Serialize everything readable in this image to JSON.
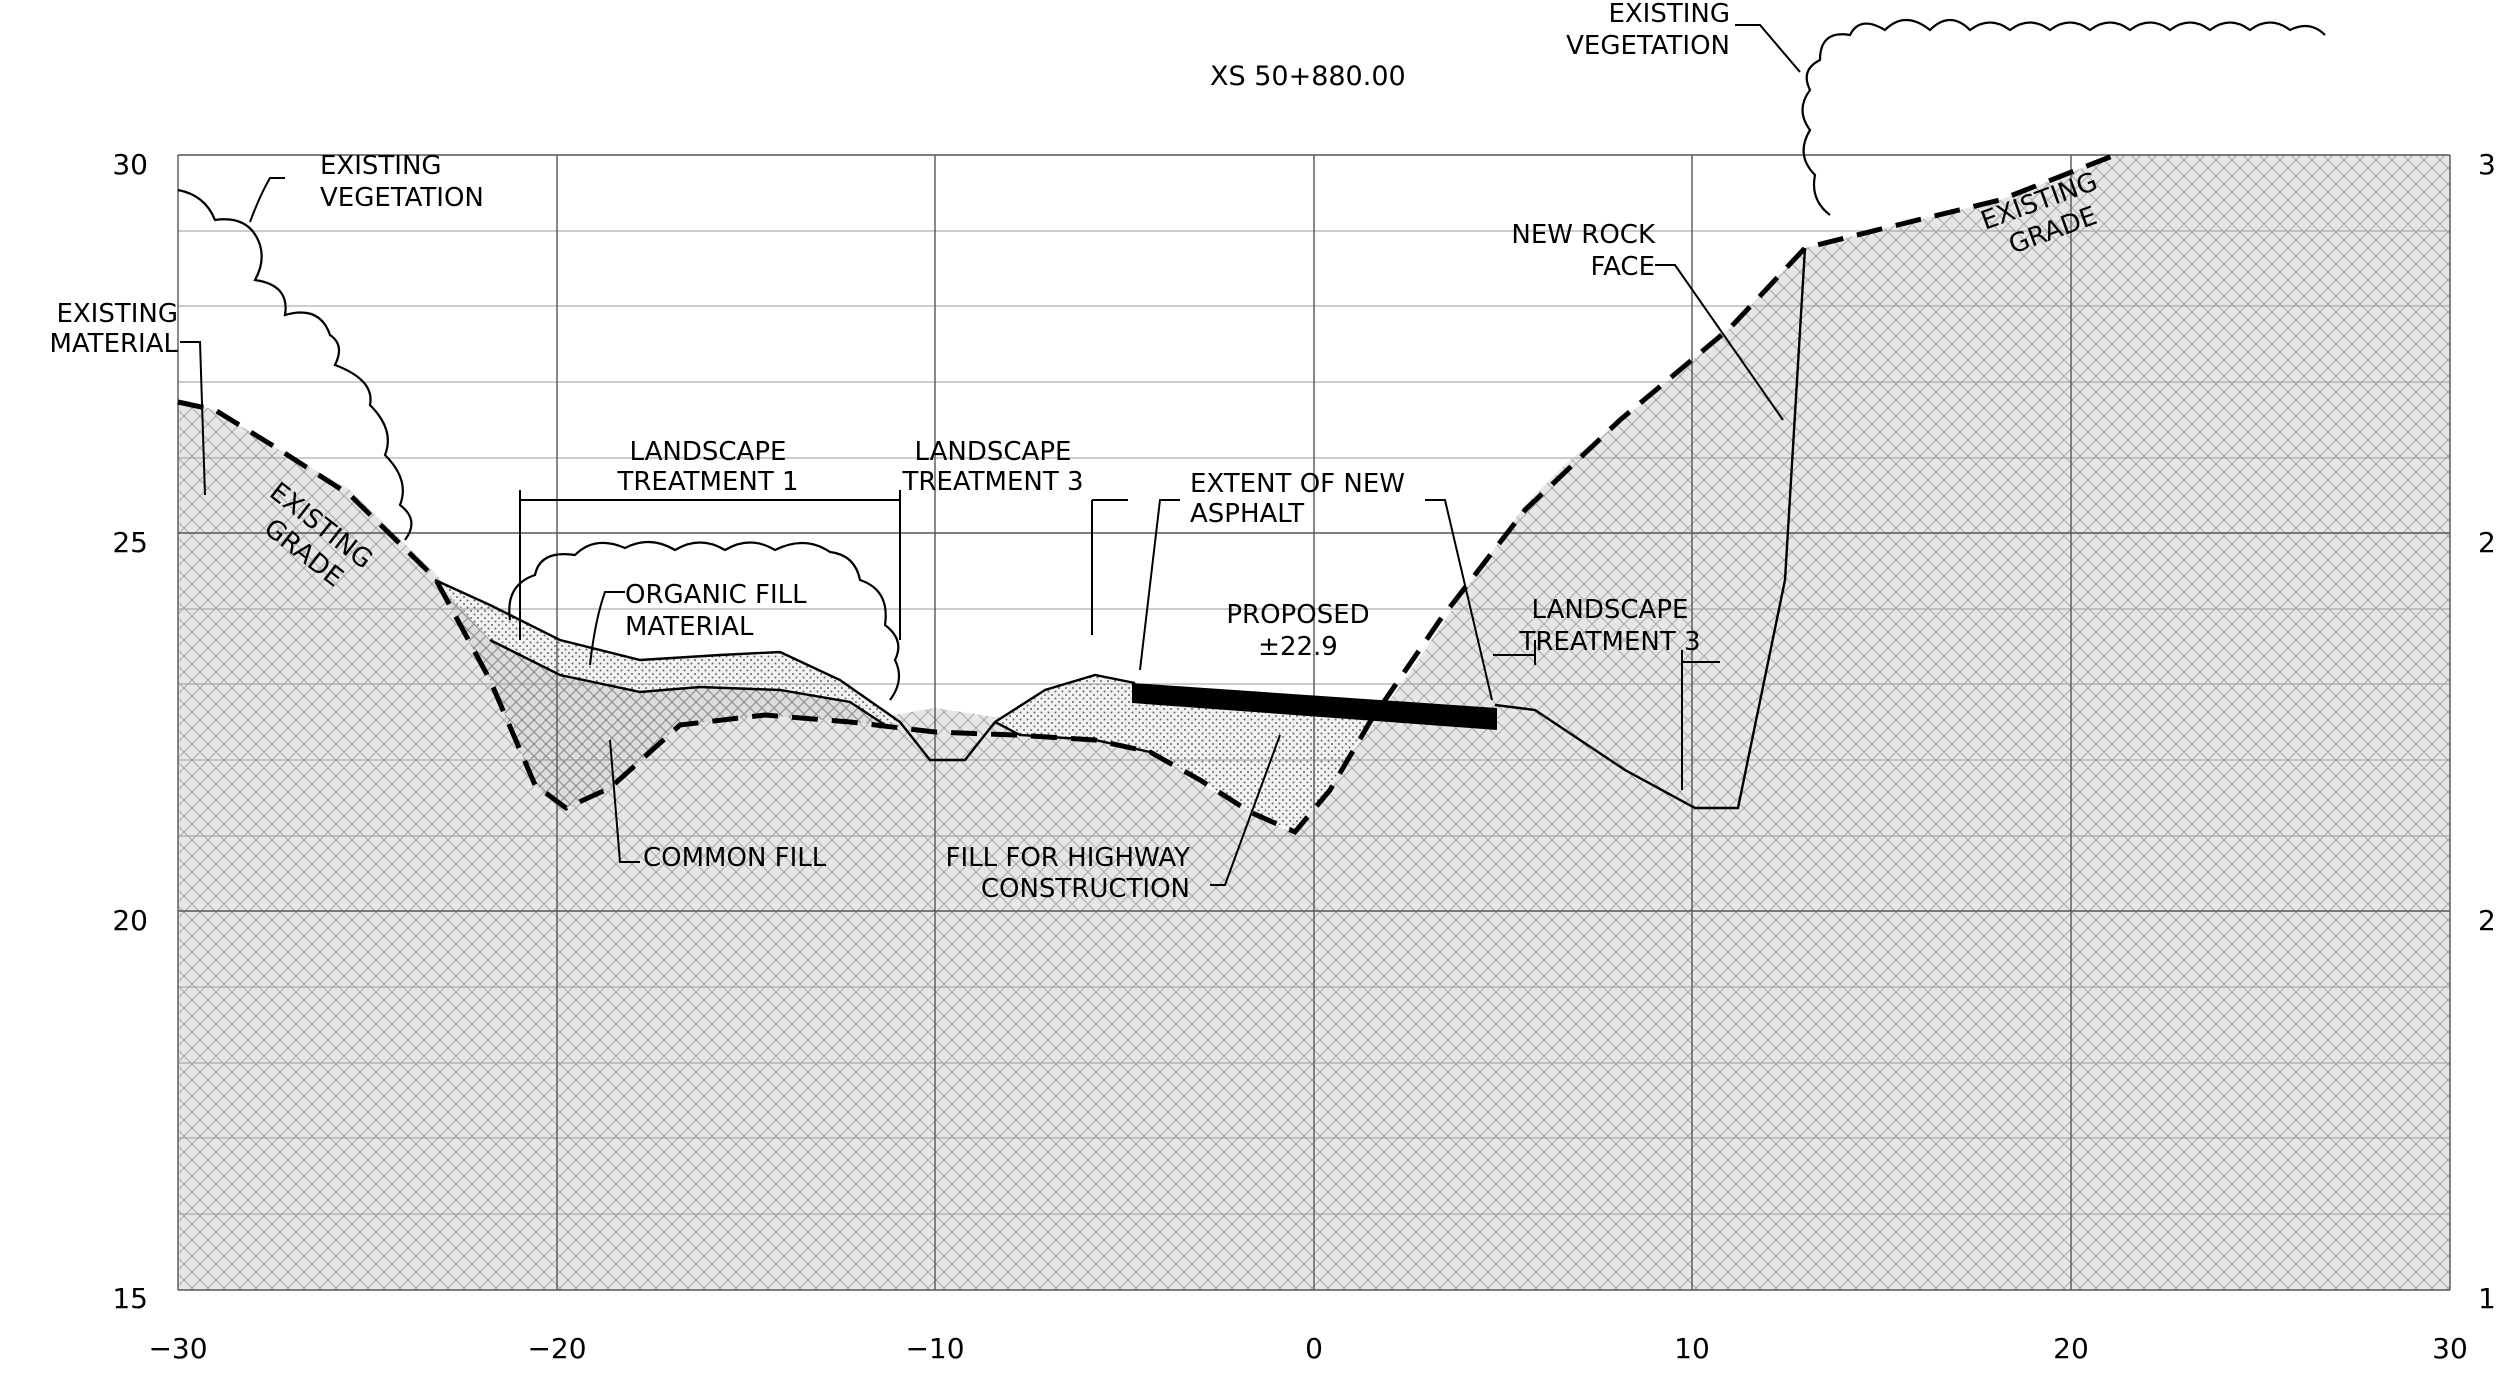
{
  "title": "XS 50+880.00",
  "axes": {
    "x_ticks": [
      "−30",
      "−20",
      "−10",
      "0",
      "10",
      "20",
      "30"
    ],
    "y_ticks_left": [
      "30",
      "25",
      "20",
      "15"
    ],
    "y_ticks_right": [
      "3",
      "2",
      "2",
      "1"
    ]
  },
  "labels": {
    "existing_vegetation_left_1": "EXISTING",
    "existing_vegetation_left_2": "VEGETATION",
    "existing_material_1": "EXISTING",
    "existing_material_2": "MATERIAL",
    "existing_grade_left_1": "EXISTING",
    "existing_grade_left_2": "GRADE",
    "landscape_t1_1": "LANDSCAPE",
    "landscape_t1_2": "TREATMENT 1",
    "landscape_t3a_1": "LANDSCAPE",
    "landscape_t3a_2": "TREATMENT 3",
    "extent_asphalt_1": "EXTENT OF NEW",
    "extent_asphalt_2": "ASPHALT",
    "organic_fill_1": "ORGANIC FILL",
    "organic_fill_2": "MATERIAL",
    "proposed_1": "PROPOSED",
    "proposed_2": "±22.9",
    "landscape_t3b_1": "LANDSCAPE",
    "landscape_t3b_2": "TREATMENT 3",
    "common_fill": "COMMON FILL",
    "fill_highway_1": "FILL FOR HIGHWAY",
    "fill_highway_2": "CONSTRUCTION",
    "new_rock_face_1": "NEW ROCK",
    "new_rock_face_2": "FACE",
    "existing_vegetation_right_1": "EXISTING",
    "existing_vegetation_right_2": "VEGETATION",
    "existing_grade_right_1": "EXISTING",
    "existing_grade_right_2": "GRADE"
  }
}
